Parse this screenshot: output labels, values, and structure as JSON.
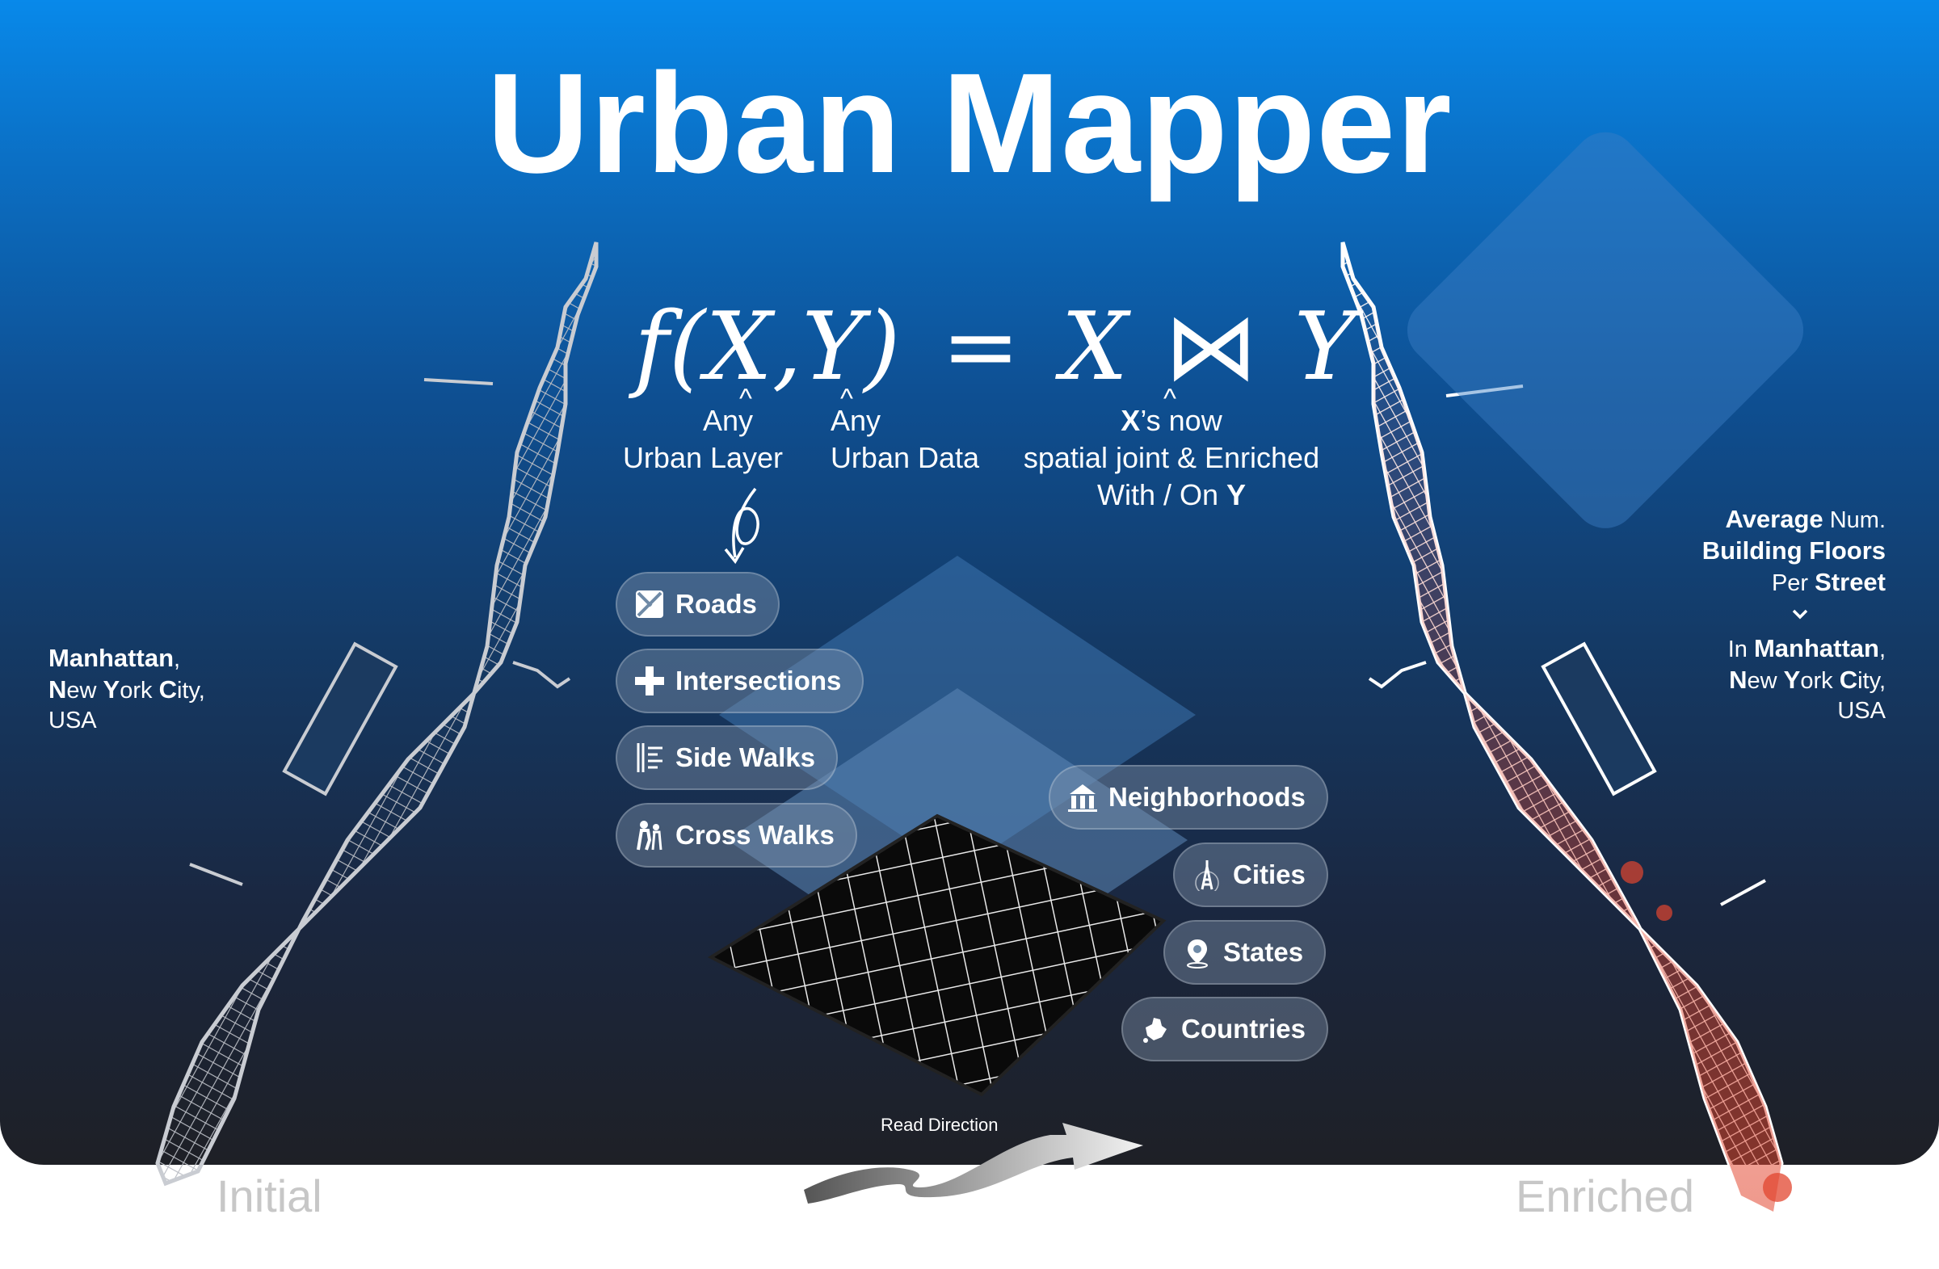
{
  "title": "Urban Mapper",
  "formula": {
    "lhs": "f(X,Y)",
    "eq": "=",
    "rhs_x": "X",
    "join_symbol": "⋈",
    "rhs_y": "Y",
    "x_label_line1": "Any",
    "x_label_line2": "Urban Layer",
    "y_label_line1": "Any",
    "y_label_line2": "Urban Data",
    "result_x": "X",
    "result_line1": "’s now",
    "result_line2": "spatial joint & Enriched",
    "result_line3_prefix": "With / On ",
    "result_y": "Y"
  },
  "left_caption": {
    "city": "Manhattan",
    "city_suffix": ",",
    "n": "N",
    "ew": "ew ",
    "y": "Y",
    "ork": "ork ",
    "c": "C",
    "ity": "ity,",
    "country": "USA"
  },
  "right_caption": {
    "average": "Average",
    "num": " Num.",
    "building_floors": "Building Floors",
    "per": "Per ",
    "street": "Street",
    "in": "In ",
    "city": "Manhattan",
    "city_suffix": ",",
    "n": "N",
    "ew": "ew ",
    "y": "Y",
    "ork": "ork ",
    "c": "C",
    "ity": "ity,",
    "country": "USA"
  },
  "urban_layers": [
    {
      "label": "Roads",
      "icon": "road-map-icon"
    },
    {
      "label": "Intersections",
      "icon": "cross-icon"
    },
    {
      "label": "Side Walks",
      "icon": "sidewalk-icon"
    },
    {
      "label": "Cross Walks",
      "icon": "pedestrian-icon"
    }
  ],
  "regions": [
    {
      "label": "Neighborhoods",
      "icon": "buildings-icon"
    },
    {
      "label": "Cities",
      "icon": "tower-icon"
    },
    {
      "label": "States",
      "icon": "location-pin-icon"
    },
    {
      "label": "Countries",
      "icon": "country-shape-icon"
    }
  ],
  "read_direction": "Read Direction",
  "footer": {
    "initial": "Initial",
    "enriched": "Enriched"
  },
  "colors": {
    "top_blue": "#0889ea",
    "bottom_dark": "#1e2026",
    "map_grey": "#b9bcc3",
    "enriched_red": "#e2462f"
  }
}
